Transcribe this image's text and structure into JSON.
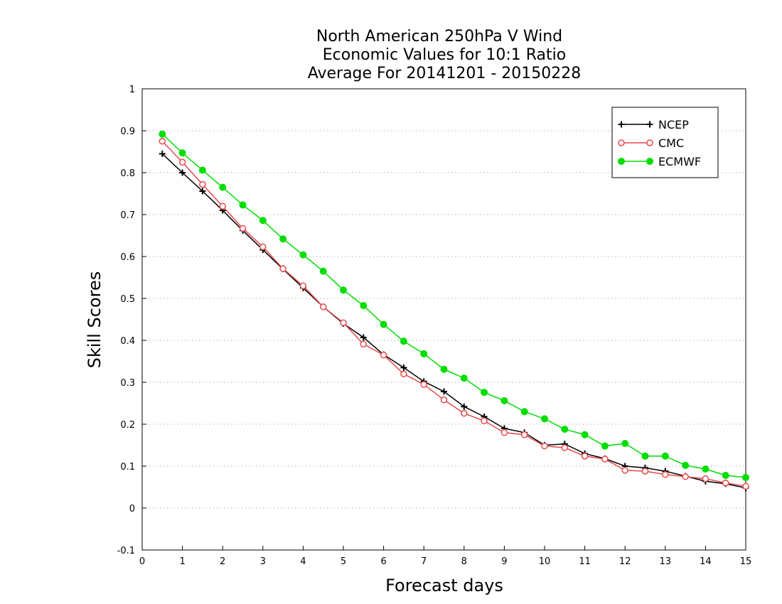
{
  "chart_data": {
    "type": "line",
    "title_lines": [
      "North American 250hPa V Wind",
      "Economic Values for 10:1 Ratio",
      "Average For 20141201 - 20150228"
    ],
    "xlabel": "Forecast days",
    "ylabel": "Skill Scores",
    "xlim": [
      0,
      15
    ],
    "ylim": [
      -0.1,
      1
    ],
    "xticks": [
      0,
      1,
      2,
      3,
      4,
      5,
      6,
      7,
      8,
      9,
      10,
      11,
      12,
      13,
      14,
      15
    ],
    "yticks": [
      -0.1,
      0,
      0.1,
      0.2,
      0.3,
      0.4,
      0.5,
      0.6,
      0.7,
      0.8,
      0.9,
      1
    ],
    "ytick_labels": [
      "-0.1",
      "0",
      "0.1",
      "0.2",
      "0.3",
      "0.4",
      "0.5",
      "0.6",
      "0.7",
      "0.8",
      "0.9",
      "1"
    ],
    "grid": "horizontal dotted",
    "legend_position": "top-right",
    "x": [
      0.5,
      1,
      1.5,
      2,
      2.5,
      3,
      3.5,
      4,
      4.5,
      5,
      5.5,
      6,
      6.5,
      7,
      7.5,
      8,
      8.5,
      9,
      9.5,
      10,
      10.5,
      11,
      11.5,
      12,
      12.5,
      13,
      13.5,
      14,
      14.5,
      15
    ],
    "series": [
      {
        "name": "NCEP",
        "color": "#000000",
        "marker": "plus",
        "values": [
          0.845,
          0.8,
          0.756,
          0.71,
          0.662,
          0.616,
          0.57,
          0.525,
          0.48,
          0.44,
          0.407,
          0.366,
          0.335,
          0.302,
          0.278,
          0.242,
          0.218,
          0.19,
          0.18,
          0.15,
          0.153,
          0.13,
          0.118,
          0.1,
          0.096,
          0.088,
          0.076,
          0.064,
          0.058,
          0.048
        ]
      },
      {
        "name": "CMC",
        "color": "#e8484a",
        "marker": "open-circle",
        "values": [
          0.875,
          0.825,
          0.772,
          0.72,
          0.667,
          0.623,
          0.571,
          0.53,
          0.48,
          0.442,
          0.391,
          0.365,
          0.32,
          0.295,
          0.258,
          0.226,
          0.208,
          0.18,
          0.175,
          0.148,
          0.144,
          0.124,
          0.117,
          0.09,
          0.088,
          0.08,
          0.075,
          0.07,
          0.06,
          0.052
        ]
      },
      {
        "name": "ECMWF",
        "color": "#00dd00",
        "marker": "filled-circle",
        "values": [
          0.892,
          0.847,
          0.806,
          0.765,
          0.723,
          0.686,
          0.642,
          0.604,
          0.565,
          0.52,
          0.483,
          0.438,
          0.398,
          0.368,
          0.331,
          0.31,
          0.276,
          0.256,
          0.23,
          0.213,
          0.188,
          0.175,
          0.148,
          0.154,
          0.124,
          0.124,
          0.102,
          0.093,
          0.078,
          0.073
        ]
      }
    ]
  }
}
